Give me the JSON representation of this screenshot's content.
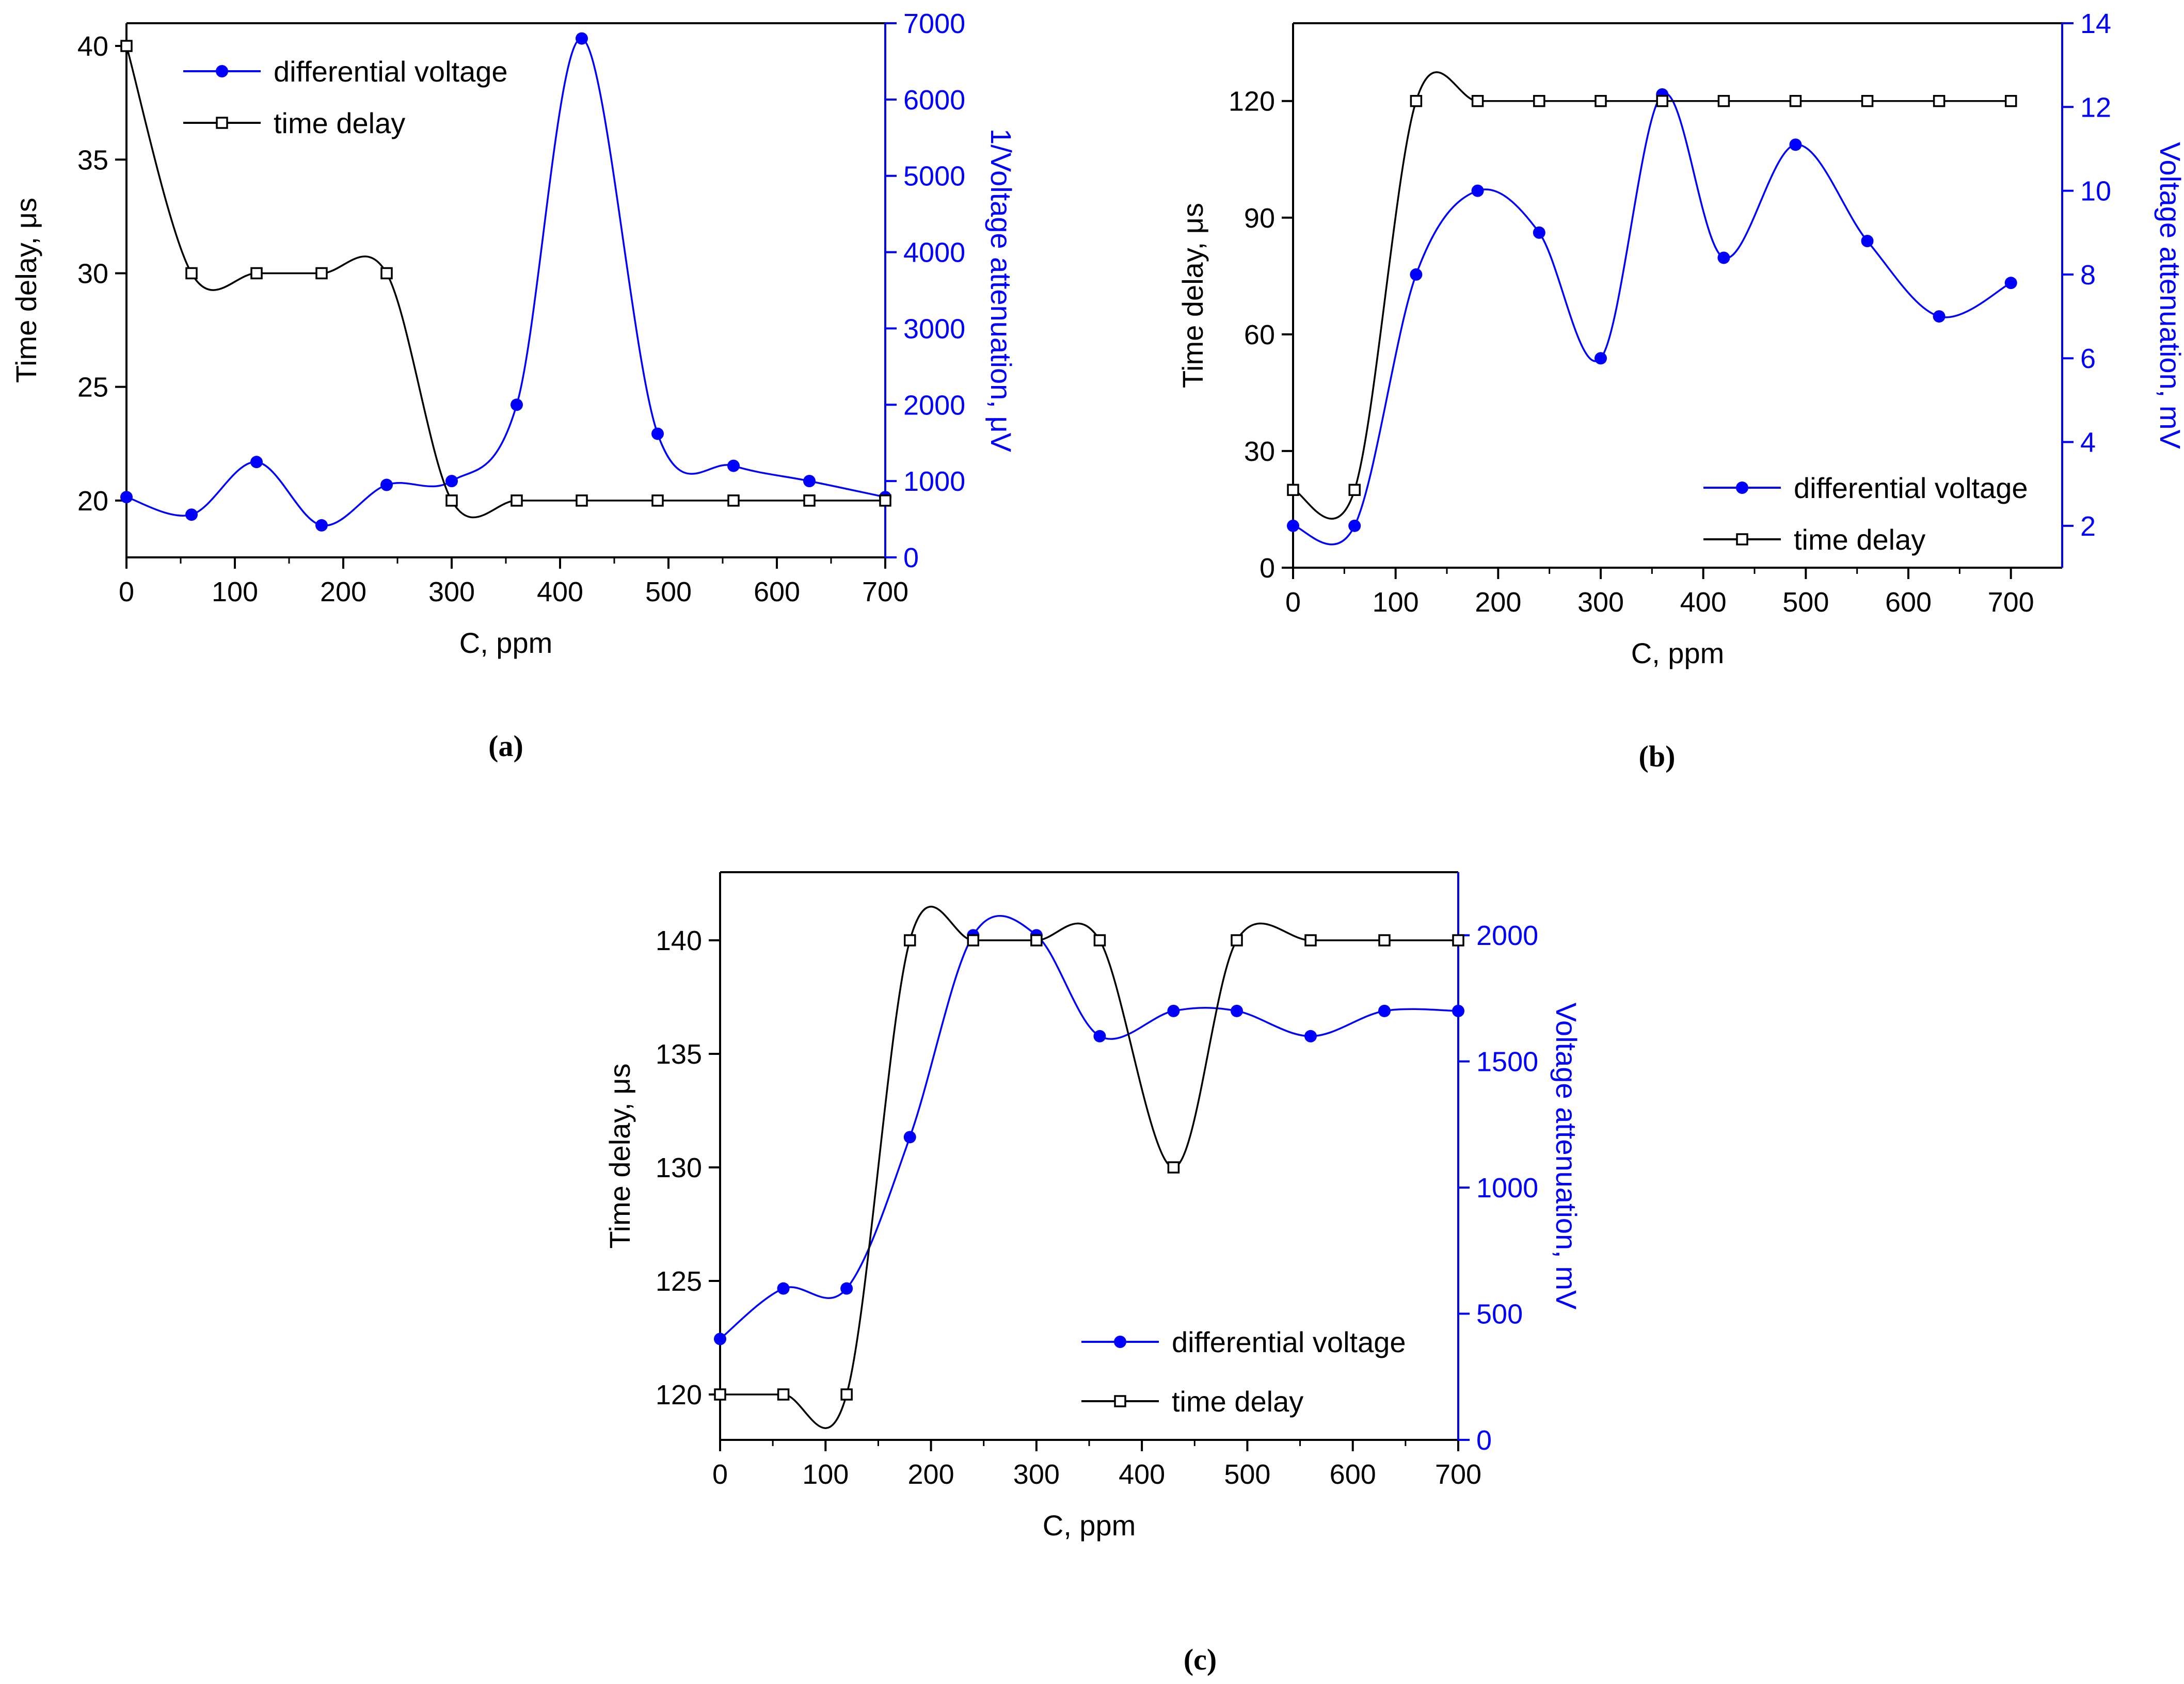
{
  "colors": {
    "left_axis": "#000000",
    "right_axis": "#0000ff",
    "voltage_series": "#0000ff",
    "delay_series": "#000000"
  },
  "chart_data": [
    {
      "id": "a",
      "type": "line",
      "caption": "(a)",
      "xlabel": "C, ppm",
      "ylabel_left": "Time delay, μs",
      "ylabel_right": "1/Voltage attenuation, μV",
      "xlim": [
        0,
        700
      ],
      "ylim_left": [
        17.5,
        41
      ],
      "ylim_right": [
        0,
        7000
      ],
      "xticks": [
        "0",
        "100",
        "200",
        "300",
        "400",
        "500",
        "600",
        "700"
      ],
      "yticks_left": [
        "20",
        "25",
        "30",
        "35",
        "40"
      ],
      "yticks_right": [
        "0",
        "1000",
        "2000",
        "3000",
        "4000",
        "5000",
        "6000",
        "7000"
      ],
      "legend_position": "top-left",
      "series": [
        {
          "name": "differential voltage",
          "axis": "right",
          "marker": "filled-circle",
          "x": [
            0,
            60,
            120,
            180,
            240,
            300,
            360,
            420,
            490,
            560,
            630,
            700
          ],
          "values": [
            790,
            560,
            1250,
            420,
            950,
            1000,
            2000,
            6800,
            1620,
            1200,
            1000,
            790
          ]
        },
        {
          "name": "time delay",
          "axis": "left",
          "marker": "open-square",
          "x": [
            0,
            60,
            120,
            180,
            240,
            300,
            360,
            420,
            490,
            560,
            630,
            700
          ],
          "values": [
            40,
            30,
            30,
            30,
            30,
            20,
            20,
            20,
            20,
            20,
            20,
            20
          ]
        }
      ]
    },
    {
      "id": "b",
      "type": "line",
      "caption": "(b)",
      "xlabel": "C, ppm",
      "ylabel_left": "Time delay, μs",
      "ylabel_right": "Voltage attenuation, mV",
      "xlim": [
        0,
        750
      ],
      "ylim_left": [
        0,
        140
      ],
      "ylim_right": [
        1,
        14
      ],
      "xticks": [
        "0",
        "100",
        "200",
        "300",
        "400",
        "500",
        "600",
        "700"
      ],
      "yticks_left": [
        "0",
        "30",
        "60",
        "90",
        "120"
      ],
      "yticks_right": [
        "2",
        "4",
        "6",
        "8",
        "10",
        "12",
        "14"
      ],
      "legend_position": "bottom-right",
      "series": [
        {
          "name": "differential voltage",
          "axis": "right",
          "marker": "filled-circle",
          "x": [
            0,
            60,
            120,
            180,
            240,
            300,
            360,
            420,
            490,
            560,
            630,
            700
          ],
          "values": [
            2,
            2,
            8,
            10,
            9,
            6,
            12.3,
            8.4,
            11.1,
            8.8,
            7,
            7.8
          ]
        },
        {
          "name": "time delay",
          "axis": "left",
          "marker": "open-square",
          "x": [
            0,
            60,
            120,
            180,
            240,
            300,
            360,
            420,
            490,
            560,
            630,
            700
          ],
          "values": [
            20,
            20,
            120,
            120,
            120,
            120,
            120,
            120,
            120,
            120,
            120,
            120
          ]
        }
      ]
    },
    {
      "id": "c",
      "type": "line",
      "caption": "(c)",
      "xlabel": "C, ppm",
      "ylabel_left": "Time delay, μs",
      "ylabel_right": "Voltage attenuation, mV",
      "xlim": [
        0,
        700
      ],
      "ylim_left": [
        118,
        143
      ],
      "ylim_right": [
        0,
        2250
      ],
      "xticks": [
        "0",
        "100",
        "200",
        "300",
        "400",
        "500",
        "600",
        "700"
      ],
      "yticks_left": [
        "120",
        "125",
        "130",
        "135",
        "140"
      ],
      "yticks_right": [
        "0",
        "500",
        "1000",
        "1500",
        "2000"
      ],
      "legend_position": "bottom-right",
      "series": [
        {
          "name": "differential voltage",
          "axis": "right",
          "marker": "filled-circle",
          "x": [
            0,
            60,
            120,
            180,
            240,
            300,
            360,
            430,
            490,
            560,
            630,
            700
          ],
          "values": [
            400,
            600,
            600,
            1200,
            2000,
            2000,
            1600,
            1700,
            1700,
            1600,
            1700,
            1700
          ]
        },
        {
          "name": "time delay",
          "axis": "left",
          "marker": "open-square",
          "x": [
            0,
            60,
            120,
            180,
            240,
            300,
            360,
            430,
            490,
            560,
            630,
            700
          ],
          "values": [
            120,
            120,
            120,
            140,
            140,
            140,
            140,
            130,
            140,
            140,
            140,
            140
          ]
        }
      ]
    }
  ]
}
